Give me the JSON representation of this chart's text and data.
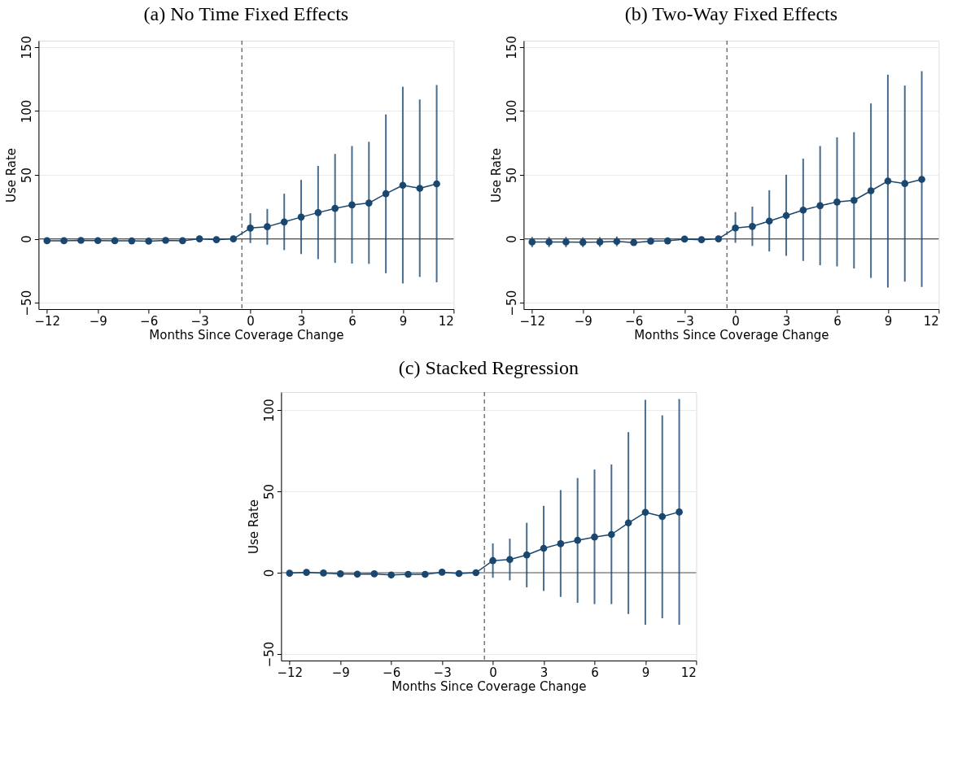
{
  "chart_data": [
    {
      "type": "line",
      "title": "(a) No Time Fixed Effects",
      "xlabel": "Months Since Coverage Change",
      "ylabel": "Use Rate",
      "x": [
        -12,
        -11,
        -10,
        -9,
        -8,
        -7,
        -6,
        -5,
        -4,
        -3,
        -2,
        -1,
        0,
        1,
        2,
        3,
        4,
        5,
        6,
        7,
        8,
        9,
        10,
        11
      ],
      "series": [
        {
          "color": "#1a476f",
          "values": [
            -1.5,
            -1.5,
            -1.2,
            -1.4,
            -1.5,
            -1.6,
            -1.8,
            -1.2,
            -1.5,
            0,
            -0.7,
            0,
            8.4,
            9.5,
            13.2,
            17,
            20.5,
            23.8,
            26.5,
            28,
            35.3,
            41.9,
            39.5,
            43
          ],
          "errors": [
            null,
            null,
            null,
            null,
            null,
            null,
            null,
            null,
            null,
            null,
            null,
            null,
            [
              -3.3,
              20
            ],
            [
              -4.6,
              23.4
            ],
            [
              -8.8,
              35.3
            ],
            [
              -11.9,
              46.1
            ],
            [
              -15.9,
              57
            ],
            [
              -18.8,
              66.4
            ],
            [
              -19.4,
              72.6
            ],
            [
              -19.6,
              75.9
            ],
            [
              -26.9,
              97.3
            ],
            [
              -34.9,
              119
            ],
            [
              -29.8,
              109
            ],
            [
              -34,
              120.3
            ]
          ]
        }
      ],
      "xlim": [
        -12.5,
        12
      ],
      "xticks": [
        -12,
        -9,
        -6,
        -3,
        0,
        3,
        6,
        9,
        12
      ],
      "ylim": [
        -55,
        155
      ],
      "yticks": [
        -50,
        0,
        50,
        100,
        150
      ],
      "grid": "y",
      "marker": "circle",
      "ref_lines": [
        {
          "axis": "y",
          "value": 0,
          "color": "#555555",
          "line_style": "solid"
        },
        {
          "axis": "x",
          "value": -0.5,
          "color": "#555555",
          "line_style": "dashed"
        }
      ]
    },
    {
      "type": "line",
      "title": "(b) Two-Way Fixed Effects",
      "xlabel": "Months Since Coverage Change",
      "ylabel": "Use Rate",
      "x": [
        -12,
        -11,
        -10,
        -9,
        -8,
        -7,
        -6,
        -5,
        -4,
        -3,
        -2,
        -1,
        0,
        1,
        2,
        3,
        4,
        5,
        6,
        7,
        8,
        9,
        10,
        11
      ],
      "series": [
        {
          "color": "#1a476f",
          "values": [
            -2.5,
            -2.5,
            -2.5,
            -2.7,
            -2.5,
            -2,
            -2.9,
            -1.8,
            -1.6,
            -0.2,
            -0.7,
            0,
            8.5,
            9.7,
            13.9,
            18.2,
            22.5,
            25.9,
            28.8,
            30.1,
            37.6,
            45.2,
            43.2,
            46.5
          ],
          "errors": [
            [
              -6.5,
              1.5
            ],
            [
              -6.5,
              1.5
            ],
            [
              -6.5,
              1.5
            ],
            [
              -6.5,
              1.2
            ],
            [
              -6.3,
              1.3
            ],
            [
              -5.8,
              1.8
            ],
            null,
            null,
            null,
            null,
            null,
            null,
            [
              -3.1,
              20.9
            ],
            [
              -5.6,
              25.2
            ],
            [
              -9.9,
              38
            ],
            [
              -13.3,
              50.1
            ],
            [
              -17.3,
              62.7
            ],
            [
              -20.7,
              72.6
            ],
            [
              -21.6,
              79.4
            ],
            [
              -23.2,
              83.4
            ],
            [
              -30.6,
              105.9
            ],
            [
              -38.2,
              128.4
            ],
            [
              -33.5,
              119.9
            ],
            [
              -37.6,
              131.1
            ]
          ]
        }
      ],
      "xlim": [
        -12.5,
        12
      ],
      "xticks": [
        -12,
        -9,
        -6,
        -3,
        0,
        3,
        6,
        9,
        12
      ],
      "ylim": [
        -55,
        155
      ],
      "yticks": [
        -50,
        0,
        50,
        100,
        150
      ],
      "grid": "y",
      "marker": "circle",
      "ref_lines": [
        {
          "axis": "y",
          "value": 0,
          "color": "#555555",
          "line_style": "solid"
        },
        {
          "axis": "x",
          "value": -0.5,
          "color": "#555555",
          "line_style": "dashed"
        }
      ]
    },
    {
      "type": "line",
      "title": "(c) Stacked Regression",
      "xlabel": "Months Since Coverage Change",
      "ylabel": "Use Rate",
      "x": [
        -12,
        -11,
        -10,
        -9,
        -8,
        -7,
        -6,
        -5,
        -4,
        -3,
        -2,
        -1,
        0,
        1,
        2,
        3,
        4,
        5,
        6,
        7,
        8,
        9,
        10,
        11
      ],
      "series": [
        {
          "color": "#1a476f",
          "values": [
            -0.3,
            0.2,
            -0.2,
            -0.7,
            -0.9,
            -0.7,
            -1.4,
            -1,
            -1,
            0.3,
            -0.5,
            0,
            7.4,
            8.1,
            10.9,
            15,
            17.8,
            19.9,
            21.9,
            23.5,
            30.6,
            37.1,
            34.5,
            37.3
          ],
          "errors": [
            null,
            null,
            null,
            null,
            null,
            null,
            null,
            null,
            null,
            null,
            null,
            null,
            [
              -3.1,
              18
            ],
            [
              -4.7,
              20.9
            ],
            [
              -9,
              30.7
            ],
            [
              -11.2,
              41.1
            ],
            [
              -14.9,
              50.8
            ],
            [
              -18.5,
              58.2
            ],
            [
              -19.3,
              63.4
            ],
            [
              -19.3,
              66.5
            ],
            [
              -25.4,
              86.4
            ],
            [
              -32,
              106.2
            ],
            [
              -28,
              96.7
            ],
            [
              -32,
              106.7
            ]
          ]
        }
      ],
      "xlim": [
        -12.5,
        12
      ],
      "xticks": [
        -12,
        -9,
        -6,
        -3,
        0,
        3,
        6,
        9,
        12
      ],
      "ylim": [
        -54,
        111
      ],
      "yticks": [
        -50,
        0,
        50,
        100
      ],
      "grid": "y",
      "marker": "circle",
      "ref_lines": [
        {
          "axis": "y",
          "value": 0,
          "color": "#555555",
          "line_style": "solid"
        },
        {
          "axis": "x",
          "value": -0.5,
          "color": "#555555",
          "line_style": "dashed"
        }
      ]
    }
  ]
}
